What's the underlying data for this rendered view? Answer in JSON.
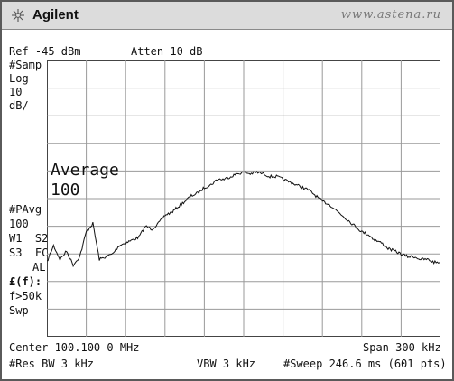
{
  "window": {
    "brand": "Agilent",
    "watermark": "www.astena.ru",
    "icon": "sunburst-logo-icon"
  },
  "header": {
    "ref": "Ref -45 dBm",
    "atten": "Atten 10 dB"
  },
  "left_panel": {
    "samp": "#Samp",
    "log": "Log",
    "scale": "10",
    "scale_unit": "dB/",
    "pavg": "#PAvg",
    "pavg_value": "100",
    "w1s2": "W1  S2",
    "s3fc": "S3  FC",
    "al": "AL",
    "ff": "£(f):",
    "fgt": "f>50k",
    "swp": "Swp"
  },
  "annotation": {
    "line1": "Average",
    "line2": "100"
  },
  "footer": {
    "center": "Center 100.100 0 MHz",
    "span": "Span 300 kHz",
    "res_bw": "#Res BW 3 kHz",
    "vbw": "VBW 3 kHz",
    "sweep": "#Sweep 246.6 ms (601 pts)"
  },
  "chart_data": {
    "type": "line",
    "xlabel": "",
    "ylabel": "",
    "xlim": [
      99.95,
      100.25
    ],
    "ylim": [
      -145,
      -45
    ],
    "grid": true,
    "series": [
      {
        "x": [
          99.95,
          99.955,
          99.96,
          99.965,
          99.97,
          99.975,
          99.98,
          99.985,
          99.99,
          99.995,
          100.0,
          100.005,
          100.01,
          100.015,
          100.02,
          100.025,
          100.03,
          100.035,
          100.04,
          100.045,
          100.05,
          100.055,
          100.06,
          100.065,
          100.07,
          100.075,
          100.08,
          100.085,
          100.09,
          100.095,
          100.1,
          100.105,
          100.11,
          100.115,
          100.12,
          100.125,
          100.13,
          100.135,
          100.14,
          100.145,
          100.15,
          100.155,
          100.16,
          100.165,
          100.17,
          100.175,
          100.18,
          100.185,
          100.19,
          100.195,
          100.2,
          100.205,
          100.21,
          100.215,
          100.22,
          100.225,
          100.23,
          100.235,
          100.24,
          100.245,
          100.25
        ],
        "values": [
          -118,
          -112,
          -117,
          -114,
          -119,
          -116,
          -107,
          -104,
          -117,
          -116,
          -115,
          -112,
          -111,
          -110,
          -109,
          -105,
          -106,
          -104,
          -101,
          -100,
          -98,
          -96,
          -94,
          -93,
          -91,
          -90,
          -88,
          -88,
          -87,
          -86,
          -85.5,
          -86,
          -85.5,
          -86,
          -87,
          -87,
          -88,
          -89,
          -90,
          -91,
          -92,
          -94,
          -96,
          -97,
          -99,
          -101,
          -103,
          -105,
          -107,
          -108,
          -110,
          -111,
          -113,
          -114,
          -115,
          -116,
          -116,
          -117,
          -117,
          -118,
          -118
        ]
      }
    ]
  }
}
